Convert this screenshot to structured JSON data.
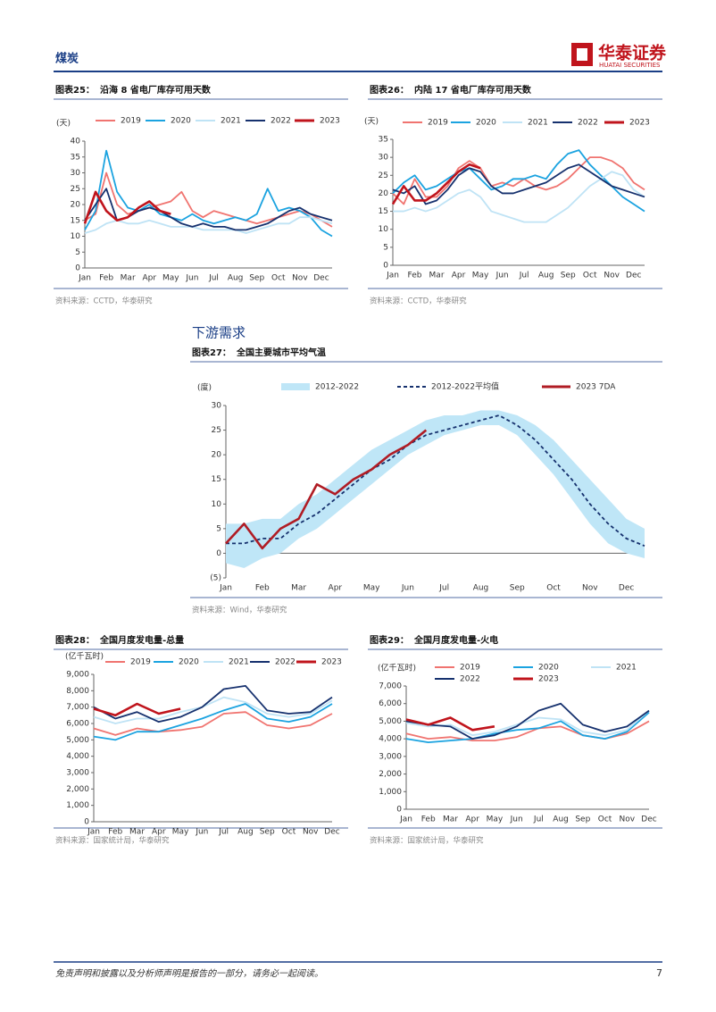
{
  "header": {
    "section": "煤炭",
    "brand": "华泰证券",
    "brand_en": "HUATAI SECURITIES"
  },
  "section_title": "下游需求",
  "chart_data": [
    {
      "type": "line",
      "figure": "图表25：",
      "title": "沿海 8 省电厂库存可用天数",
      "y_label": "(天)",
      "source": "资料来源：CCTD，华泰研究",
      "categories": [
        "Jan",
        null,
        "Feb",
        null,
        "Mar",
        null,
        "Apr",
        null,
        "May",
        null,
        "Jun",
        null,
        "Jul",
        null,
        "Aug",
        null,
        "Sep",
        null,
        "Oct",
        null,
        "Nov",
        null,
        "Dec",
        null
      ],
      "ylim": [
        0,
        40
      ],
      "yticks": [
        0,
        5,
        10,
        15,
        20,
        25,
        30,
        35,
        40
      ],
      "grid": false,
      "series": [
        {
          "name": "2019",
          "color": "#f07470",
          "values": [
            15,
            17,
            30,
            20,
            17,
            18,
            19,
            20,
            21,
            24,
            18,
            16,
            18,
            17,
            16,
            15,
            14,
            15,
            16,
            17,
            18,
            17,
            15,
            13
          ]
        },
        {
          "name": "2020",
          "color": "#1ba3e0",
          "values": [
            12,
            18,
            37,
            24,
            19,
            18,
            20,
            17,
            16,
            15,
            17,
            15,
            14,
            15,
            16,
            15,
            17,
            25,
            18,
            19,
            18,
            16,
            12,
            10
          ]
        },
        {
          "name": "2021",
          "color": "#bfe3f5",
          "values": [
            11,
            12,
            14,
            15,
            14,
            14,
            15,
            14,
            13,
            13,
            13,
            12,
            12,
            12,
            12,
            11,
            12,
            13,
            14,
            14,
            16,
            16,
            15,
            14
          ]
        },
        {
          "name": "2022",
          "color": "#16316e",
          "values": [
            15,
            20,
            25,
            15,
            16,
            18,
            19,
            18,
            16,
            14,
            13,
            14,
            13,
            13,
            12,
            12,
            13,
            14,
            16,
            18,
            19,
            17,
            16,
            15
          ]
        },
        {
          "name": "2023",
          "color": "#c0141c",
          "values": [
            14,
            24,
            18,
            15,
            16,
            19,
            21,
            18,
            17,
            null,
            null,
            null,
            null,
            null,
            null,
            null,
            null,
            null,
            null,
            null,
            null,
            null,
            null,
            null
          ]
        }
      ]
    },
    {
      "type": "line",
      "figure": "图表26：",
      "title": "内陆 17 省电厂库存可用天数",
      "y_label": "(天)",
      "source": "资料来源：CCTD，华泰研究",
      "categories": [
        "Jan",
        null,
        "Feb",
        null,
        "Mar",
        null,
        "Apr",
        null,
        "May",
        null,
        "Jun",
        null,
        "Jul",
        null,
        "Aug",
        null,
        "Sep",
        null,
        "Oct",
        null,
        "Nov",
        null,
        "Dec",
        null
      ],
      "ylim": [
        0,
        35
      ],
      "yticks": [
        0,
        5,
        10,
        15,
        20,
        25,
        30,
        35
      ],
      "grid": false,
      "series": [
        {
          "name": "2019",
          "color": "#f07470",
          "values": [
            20,
            17,
            24,
            19,
            19,
            22,
            27,
            29,
            27,
            22,
            23,
            22,
            24,
            22,
            21,
            22,
            24,
            27,
            30,
            30,
            29,
            27,
            23,
            21
          ]
        },
        {
          "name": "2020",
          "color": "#1ba3e0",
          "values": [
            20,
            23,
            25,
            21,
            22,
            24,
            26,
            27,
            24,
            21,
            22,
            24,
            24,
            25,
            24,
            28,
            31,
            32,
            28,
            25,
            22,
            19,
            17,
            15
          ]
        },
        {
          "name": "2021",
          "color": "#bfe3f5",
          "values": [
            15,
            15,
            16,
            15,
            16,
            18,
            20,
            21,
            19,
            15,
            14,
            13,
            12,
            12,
            12,
            14,
            16,
            19,
            22,
            24,
            26,
            25,
            21,
            19
          ]
        },
        {
          "name": "2022",
          "color": "#16316e",
          "values": [
            21,
            20,
            22,
            17,
            18,
            21,
            25,
            27,
            26,
            22,
            20,
            20,
            21,
            22,
            23,
            25,
            27,
            28,
            26,
            24,
            22,
            21,
            20,
            19
          ]
        },
        {
          "name": "2023",
          "color": "#c0141c",
          "values": [
            17,
            22,
            18,
            18,
            20,
            23,
            26,
            28,
            27,
            null,
            null,
            null,
            null,
            null,
            null,
            null,
            null,
            null,
            null,
            null,
            null,
            null,
            null,
            null
          ]
        }
      ]
    },
    {
      "type": "line",
      "figure": "图表27：",
      "title": "全国主要城市平均气温",
      "y_label": "(度)",
      "source": "资料来源：Wind，华泰研究",
      "categories": [
        "Jan",
        null,
        "Feb",
        null,
        "Mar",
        null,
        "Apr",
        null,
        "May",
        null,
        "Jun",
        null,
        "Jul",
        null,
        "Aug",
        null,
        "Sep",
        null,
        "Oct",
        null,
        "Nov",
        null,
        "Dec",
        null
      ],
      "ylim": [
        -5,
        30
      ],
      "yticks": [
        {
          "value": -5,
          "label": "(5)"
        },
        0,
        5,
        10,
        15,
        20,
        25,
        30
      ],
      "grid": false,
      "series": [
        {
          "name": "2012-2022",
          "color": "#bfe6f7",
          "low": [
            -2,
            -3,
            -1,
            0,
            3,
            5,
            8,
            11,
            14,
            17,
            20,
            22,
            24,
            25,
            26,
            26,
            24,
            20,
            16,
            11,
            6,
            2,
            0,
            -1
          ],
          "high": [
            6,
            6,
            7,
            7,
            10,
            12,
            15,
            18,
            21,
            23,
            25,
            27,
            28,
            28,
            29,
            29,
            28,
            26,
            23,
            19,
            15,
            11,
            7,
            5
          ]
        },
        {
          "name": "2012-2022平均值",
          "color": "#16316e",
          "dash": true,
          "values": [
            2,
            2,
            3,
            3,
            6,
            8,
            11,
            14,
            17,
            19,
            22,
            24,
            25,
            26,
            27,
            28,
            26,
            23,
            19,
            15,
            10,
            6,
            3,
            1.5
          ]
        },
        {
          "name": "2023 7DA",
          "color": "#b01c24",
          "values": [
            2,
            6,
            1,
            5,
            7,
            14,
            12,
            15,
            17,
            20,
            22,
            25,
            null,
            null,
            null,
            null,
            null,
            null,
            null,
            null,
            null,
            null,
            null,
            null
          ]
        }
      ]
    },
    {
      "type": "line",
      "figure": "图表28：",
      "title": "全国月度发电量-总量",
      "y_label": "(亿千瓦时)",
      "source": "资料来源：国家统计局，华泰研究",
      "categories": [
        "Jan",
        "Feb",
        "Mar",
        "Apr",
        "May",
        "Jun",
        "Jul",
        "Aug",
        "Sep",
        "Oct",
        "Nov",
        "Dec"
      ],
      "ylim": [
        0,
        9000
      ],
      "yticks": [
        0,
        {
          "value": 1000,
          "label": "1,000"
        },
        {
          "value": 2000,
          "label": "2,000"
        },
        {
          "value": 3000,
          "label": "3,000"
        },
        {
          "value": 4000,
          "label": "4,000"
        },
        {
          "value": 5000,
          "label": "5,000"
        },
        {
          "value": 6000,
          "label": "6,000"
        },
        {
          "value": 7000,
          "label": "7,000"
        },
        {
          "value": 8000,
          "label": "8,000"
        },
        {
          "value": 9000,
          "label": "9,000"
        }
      ],
      "grid": false,
      "series": [
        {
          "name": "2019",
          "color": "#f07470",
          "values": [
            5700,
            5300,
            5700,
            5500,
            5600,
            5800,
            6600,
            6700,
            5900,
            5700,
            5900,
            6600
          ]
        },
        {
          "name": "2020",
          "color": "#1ba3e0",
          "values": [
            5200,
            5000,
            5500,
            5500,
            5900,
            6300,
            6800,
            7200,
            6300,
            6100,
            6400,
            7200
          ]
        },
        {
          "name": "2021",
          "color": "#bfe3f5",
          "values": [
            6400,
            6000,
            6300,
            6300,
            6700,
            7000,
            7600,
            7300,
            6600,
            6400,
            6600,
            7400
          ]
        },
        {
          "name": "2022",
          "color": "#16316e",
          "values": [
            7000,
            6300,
            6700,
            6100,
            6400,
            7000,
            8100,
            8300,
            6800,
            6600,
            6700,
            7600
          ]
        },
        {
          "name": "2023",
          "color": "#c0141c",
          "values": [
            6900,
            6500,
            7200,
            6600,
            6900,
            null,
            null,
            null,
            null,
            null,
            null,
            null
          ]
        }
      ]
    },
    {
      "type": "line",
      "figure": "图表29：",
      "title": "全国月度发电量-火电",
      "y_label": "(亿千瓦时)",
      "source": "资料来源：国家统计局，华泰研究",
      "categories": [
        "Jan",
        "Feb",
        "Mar",
        "Apr",
        "May",
        "Jun",
        "Jul",
        "Aug",
        "Sep",
        "Oct",
        "Nov",
        "Dec"
      ],
      "ylim": [
        0,
        7000
      ],
      "yticks": [
        0,
        {
          "value": 1000,
          "label": "1,000"
        },
        {
          "value": 2000,
          "label": "2,000"
        },
        {
          "value": 3000,
          "label": "3,000"
        },
        {
          "value": 4000,
          "label": "4,000"
        },
        {
          "value": 5000,
          "label": "5,000"
        },
        {
          "value": 6000,
          "label": "6,000"
        },
        {
          "value": 7000,
          "label": "7,000"
        }
      ],
      "grid": false,
      "series": [
        {
          "name": "2019",
          "color": "#f07470",
          "values": [
            4300,
            4000,
            4100,
            3900,
            3900,
            4100,
            4600,
            4700,
            4200,
            4000,
            4300,
            5000
          ]
        },
        {
          "name": "2020",
          "color": "#1ba3e0",
          "values": [
            4000,
            3800,
            3900,
            4000,
            4300,
            4500,
            4600,
            5000,
            4200,
            4000,
            4400,
            5500
          ]
        },
        {
          "name": "2021",
          "color": "#bfe3f5",
          "values": [
            4900,
            4700,
            4800,
            4200,
            4400,
            4800,
            5200,
            5100,
            4400,
            4200,
            4500,
            5600
          ]
        },
        {
          "name": "2022",
          "color": "#16316e",
          "values": [
            5000,
            4800,
            4700,
            4000,
            4200,
            4700,
            5600,
            6000,
            4800,
            4400,
            4700,
            5600
          ]
        },
        {
          "name": "2023",
          "color": "#c0141c",
          "values": [
            5100,
            4800,
            5200,
            4500,
            4700,
            null,
            null,
            null,
            null,
            null,
            null,
            null
          ]
        }
      ]
    }
  ],
  "footer": {
    "disclaimer": "免责声明和披露以及分析师声明是报告的一部分，请务必一起阅读。",
    "page": 7
  }
}
